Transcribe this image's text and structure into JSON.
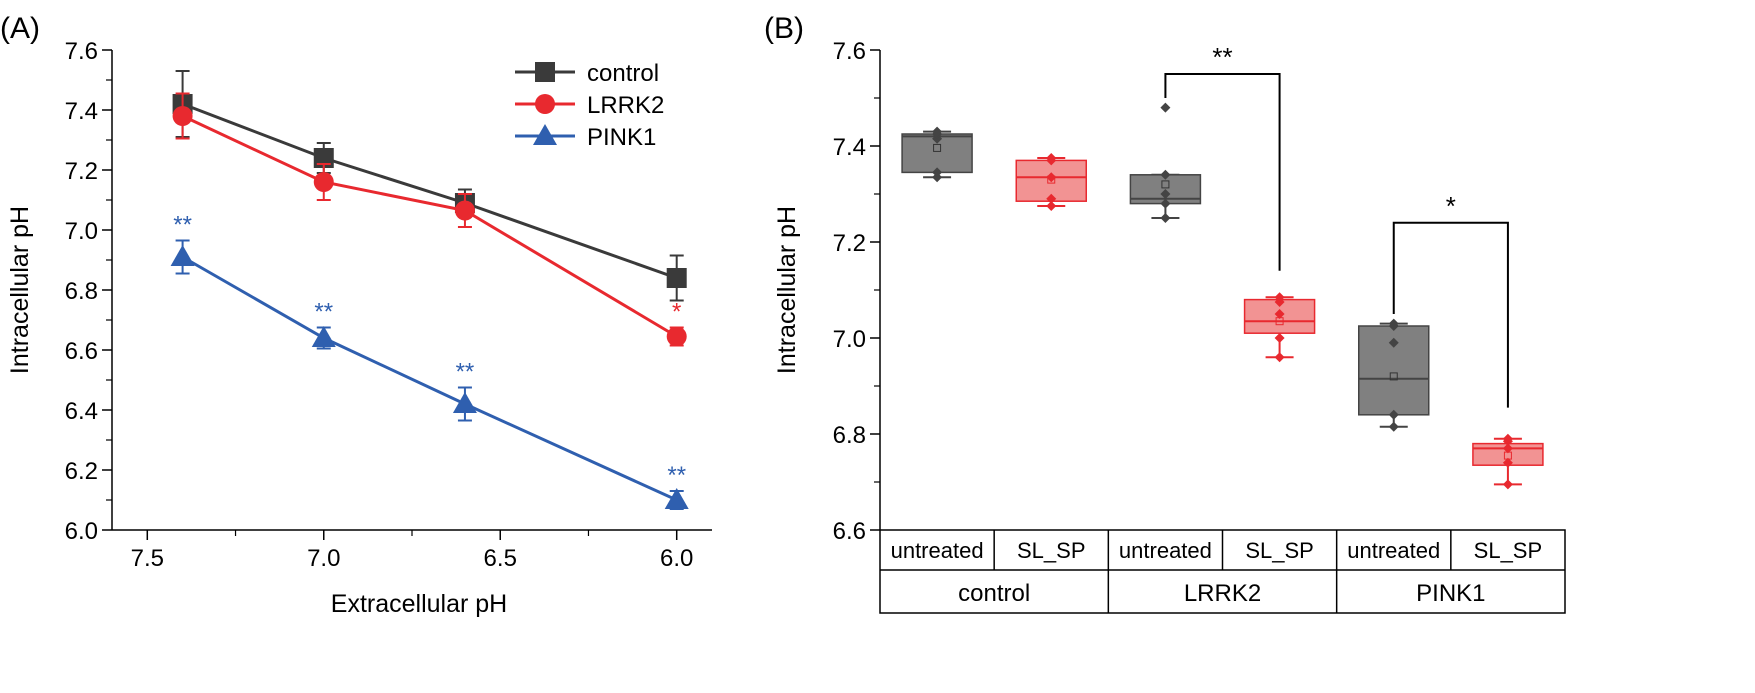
{
  "chart_data": [
    {
      "type": "line",
      "panel_label": "(A)",
      "xlabel": "Extracellular pH",
      "ylabel": "Intracellular pH",
      "xlim": [
        7.6,
        5.9
      ],
      "ylim": [
        6.0,
        7.6
      ],
      "x_ticks": [
        "7.5",
        "7.0",
        "6.5",
        "6.0"
      ],
      "y_ticks": [
        "6.0",
        "6.2",
        "6.4",
        "6.6",
        "6.8",
        "7.0",
        "7.2",
        "7.4",
        "7.6"
      ],
      "legend_position": "top-right",
      "x": [
        7.4,
        7.0,
        6.6,
        6.0
      ],
      "series": [
        {
          "name": "control",
          "color": "#3a3a3a",
          "marker": "square",
          "values": [
            7.42,
            7.24,
            7.09,
            6.84
          ],
          "errors": [
            0.11,
            0.05,
            0.045,
            0.075
          ],
          "annotations": [
            "",
            "",
            "",
            ""
          ]
        },
        {
          "name": "LRRK2",
          "color": "#e8292f",
          "marker": "circle",
          "values": [
            7.38,
            7.16,
            7.065,
            6.645
          ],
          "errors": [
            0.075,
            0.06,
            0.055,
            0.03
          ],
          "annotations": [
            "",
            "",
            "",
            "*"
          ]
        },
        {
          "name": "PINK1",
          "color": "#2f5faf",
          "marker": "triangle",
          "values": [
            6.91,
            6.64,
            6.42,
            6.1
          ],
          "errors": [
            0.055,
            0.035,
            0.055,
            0.03
          ],
          "annotations": [
            "**",
            "**",
            "**",
            "**"
          ]
        }
      ]
    },
    {
      "type": "box",
      "panel_label": "(B)",
      "ylabel": "Intracellular pH",
      "ylim": [
        6.6,
        7.6
      ],
      "y_ticks": [
        "6.6",
        "6.8",
        "7.0",
        "7.2",
        "7.4",
        "7.6"
      ],
      "groups": [
        "control",
        "LRRK2",
        "PINK1"
      ],
      "treatments": [
        "untreated",
        "SL_SP"
      ],
      "colors": {
        "untreated": "#808080",
        "SL_SP": "#f08080"
      },
      "boxes": [
        {
          "group": "control",
          "treatment": "untreated",
          "q1": 7.345,
          "median": 7.42,
          "q3": 7.425,
          "whisker_low": 7.335,
          "whisker_high": 7.43,
          "mean": 7.396,
          "points": [
            7.335,
            7.345,
            7.415,
            7.425,
            7.43
          ]
        },
        {
          "group": "control",
          "treatment": "SL_SP",
          "q1": 7.285,
          "median": 7.335,
          "q3": 7.37,
          "whisker_low": 7.275,
          "whisker_high": 7.375,
          "mean": 7.33,
          "points": [
            7.275,
            7.29,
            7.335,
            7.37,
            7.375
          ]
        },
        {
          "group": "LRRK2",
          "treatment": "untreated",
          "q1": 7.28,
          "median": 7.29,
          "q3": 7.34,
          "whisker_low": 7.25,
          "whisker_high": 7.34,
          "mean": 7.32,
          "points": [
            7.25,
            7.28,
            7.3,
            7.34,
            7.48
          ]
        },
        {
          "group": "LRRK2",
          "treatment": "SL_SP",
          "q1": 7.01,
          "median": 7.035,
          "q3": 7.08,
          "whisker_low": 6.96,
          "whisker_high": 7.085,
          "mean": 7.035,
          "points": [
            6.96,
            7.0,
            7.05,
            7.075,
            7.085
          ]
        },
        {
          "group": "PINK1",
          "treatment": "untreated",
          "q1": 6.84,
          "median": 6.915,
          "q3": 7.025,
          "whisker_low": 6.815,
          "whisker_high": 7.03,
          "mean": 6.92,
          "points": [
            6.815,
            6.84,
            6.99,
            7.025,
            7.03
          ]
        },
        {
          "group": "PINK1",
          "treatment": "SL_SP",
          "q1": 6.735,
          "median": 6.77,
          "q3": 6.78,
          "whisker_low": 6.695,
          "whisker_high": 6.79,
          "mean": 6.755,
          "points": [
            6.695,
            6.74,
            6.77,
            6.785,
            6.79
          ]
        }
      ],
      "significance": [
        {
          "group": "LRRK2",
          "label": "**",
          "bracket_top": 7.55,
          "left_end": 7.5,
          "right_end": 7.14
        },
        {
          "group": "PINK1",
          "label": "*",
          "bracket_top": 7.24,
          "left_end": 7.05,
          "right_end": 6.855
        }
      ]
    }
  ]
}
